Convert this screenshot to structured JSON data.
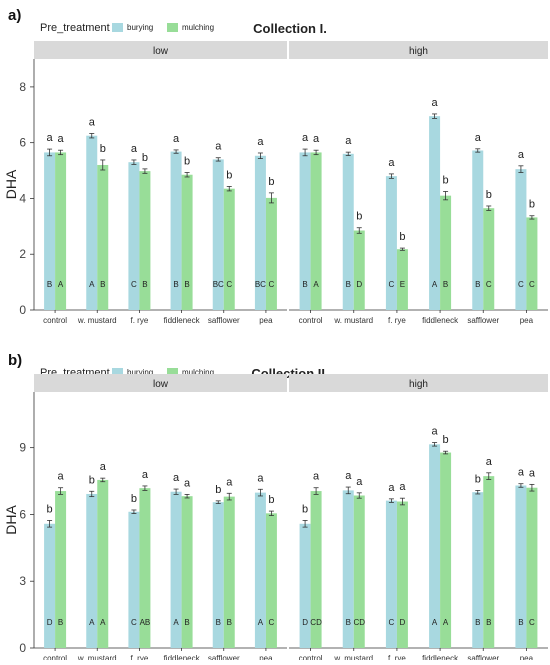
{
  "legend": {
    "title": "Pre_treatment",
    "items": [
      {
        "label": "burying",
        "color": "#a8d8e0"
      },
      {
        "label": "mulching",
        "color": "#98dd98"
      }
    ]
  },
  "colors": {
    "burying": "#a8d8e0",
    "mulching": "#98dd98",
    "strip": "#d9d9d9",
    "error_bar": "#333333",
    "axis_line": "#333333"
  },
  "chart_data": [
    {
      "type": "bar",
      "panel_letter": "a)",
      "title": "Collection I.",
      "ylabel": "DHA",
      "xlabel": "",
      "ylim": [
        0,
        9
      ],
      "yticks": [
        0,
        2,
        4,
        6,
        8
      ],
      "grid": false,
      "legend_position": "top-left",
      "categories": [
        "control",
        "w. mustard",
        "f. rye",
        "fiddleneck",
        "safflower",
        "pea"
      ],
      "facets": [
        {
          "label": "low",
          "series": [
            {
              "name": "burying",
              "values": [
                5.65,
                6.25,
                5.3,
                5.68,
                5.4,
                5.53
              ],
              "errors": [
                0.12,
                0.08,
                0.08,
                0.06,
                0.06,
                0.1
              ],
              "sig_upper": [
                "a",
                "a",
                "a",
                "a",
                "a",
                "a"
              ],
              "sig_lower": [
                "B",
                "A",
                "C",
                "B",
                "BC",
                "BC"
              ]
            },
            {
              "name": "mulching",
              "values": [
                5.65,
                5.2,
                4.98,
                4.85,
                4.35,
                4.02
              ],
              "errors": [
                0.08,
                0.18,
                0.08,
                0.08,
                0.08,
                0.18
              ],
              "sig_upper": [
                "a",
                "b",
                "b",
                "b",
                "b",
                "b"
              ],
              "sig_lower": [
                "A",
                "B",
                "B",
                "B",
                "C",
                "C"
              ]
            }
          ]
        },
        {
          "label": "high",
          "series": [
            {
              "name": "burying",
              "values": [
                5.65,
                5.6,
                4.8,
                6.95,
                5.72,
                5.05
              ],
              "errors": [
                0.12,
                0.06,
                0.08,
                0.08,
                0.06,
                0.12
              ],
              "sig_upper": [
                "a",
                "a",
                "a",
                "a",
                "a",
                "a"
              ],
              "sig_lower": [
                "B",
                "B",
                "C",
                "A",
                "B",
                "C"
              ]
            },
            {
              "name": "mulching",
              "values": [
                5.65,
                2.85,
                2.18,
                4.1,
                3.65,
                3.32
              ],
              "errors": [
                0.08,
                0.1,
                0.04,
                0.15,
                0.08,
                0.06
              ],
              "sig_upper": [
                "a",
                "b",
                "b",
                "b",
                "b",
                "b"
              ],
              "sig_lower": [
                "A",
                "D",
                "E",
                "B",
                "C",
                "C"
              ]
            }
          ]
        }
      ]
    },
    {
      "type": "bar",
      "panel_letter": "b)",
      "title": "Collection II.",
      "ylabel": "DHA",
      "xlabel": "",
      "ylim": [
        0,
        11.5
      ],
      "yticks": [
        0,
        3,
        6,
        9
      ],
      "grid": false,
      "legend_position": "top-left",
      "categories": [
        "control",
        "w. mustard",
        "f. rye",
        "fiddleneck",
        "safflower",
        "pea"
      ],
      "facets": [
        {
          "label": "low",
          "series": [
            {
              "name": "burying",
              "values": [
                5.58,
                6.92,
                6.12,
                7.02,
                6.55,
                6.98
              ],
              "errors": [
                0.15,
                0.12,
                0.08,
                0.12,
                0.06,
                0.15
              ],
              "sig_upper": [
                "b",
                "b",
                "b",
                "a",
                "b",
                "a"
              ],
              "sig_lower": [
                "D",
                "A",
                "C",
                "A",
                "B",
                "A"
              ]
            },
            {
              "name": "mulching",
              "values": [
                7.05,
                7.55,
                7.18,
                6.82,
                6.8,
                6.05
              ],
              "errors": [
                0.15,
                0.08,
                0.1,
                0.08,
                0.15,
                0.1
              ],
              "sig_upper": [
                "a",
                "a",
                "a",
                "a",
                "a",
                "b"
              ],
              "sig_lower": [
                "B",
                "A",
                "AB",
                "B",
                "B",
                "C"
              ]
            }
          ]
        },
        {
          "label": "high",
          "series": [
            {
              "name": "burying",
              "values": [
                5.58,
                7.08,
                6.62,
                9.15,
                7.0,
                7.3
              ],
              "errors": [
                0.15,
                0.15,
                0.08,
                0.08,
                0.08,
                0.08
              ],
              "sig_upper": [
                "b",
                "a",
                "a",
                "a",
                "b",
                "a"
              ],
              "sig_lower": [
                "D",
                "B",
                "C",
                "A",
                "B",
                "B"
              ]
            },
            {
              "name": "mulching",
              "values": [
                7.05,
                6.85,
                6.58,
                8.78,
                7.72,
                7.2
              ],
              "errors": [
                0.15,
                0.12,
                0.15,
                0.06,
                0.15,
                0.15
              ],
              "sig_upper": [
                "a",
                "a",
                "a",
                "b",
                "a",
                "a"
              ],
              "sig_lower": [
                "CD",
                "CD",
                "D",
                "A",
                "B",
                "C"
              ]
            }
          ]
        }
      ]
    }
  ]
}
